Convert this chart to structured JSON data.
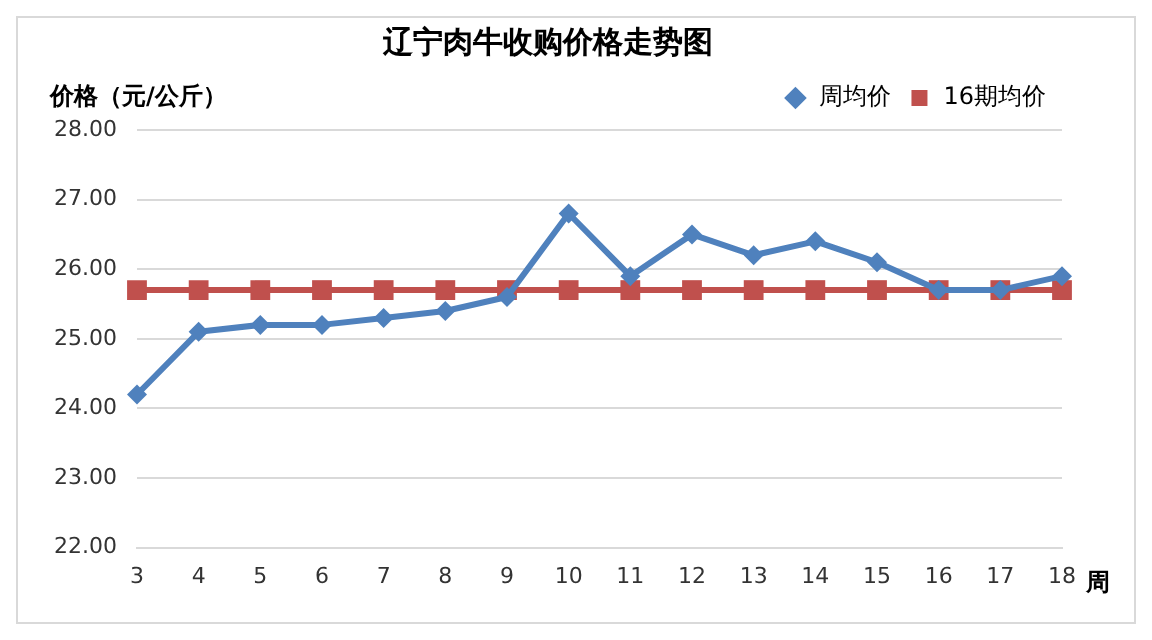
{
  "chart_data": {
    "type": "line",
    "title": "辽宁肉牛收购价格走势图",
    "xlabel": "周",
    "ylabel": "价格（元/公斤）",
    "categories": [
      "3",
      "4",
      "5",
      "6",
      "7",
      "8",
      "9",
      "10",
      "11",
      "12",
      "13",
      "14",
      "15",
      "16",
      "17",
      "18"
    ],
    "series": [
      {
        "name": "周均价",
        "color": "#4f81bd",
        "marker": "diamond",
        "values": [
          24.2,
          25.1,
          25.2,
          25.2,
          25.3,
          25.4,
          25.6,
          26.8,
          25.9,
          26.5,
          26.2,
          26.4,
          26.1,
          25.7,
          25.7,
          25.9
        ]
      },
      {
        "name": "16期均价",
        "color": "#c0504d",
        "marker": "square",
        "values": [
          25.7,
          25.7,
          25.7,
          25.7,
          25.7,
          25.7,
          25.7,
          25.7,
          25.7,
          25.7,
          25.7,
          25.7,
          25.7,
          25.7,
          25.7,
          25.7
        ]
      }
    ],
    "ylim": [
      22,
      28
    ],
    "yticks": [
      {
        "value": 22,
        "label": "22.00"
      },
      {
        "value": 23,
        "label": "23.00"
      },
      {
        "value": 24,
        "label": "24.00"
      },
      {
        "value": 25,
        "label": "25.00"
      },
      {
        "value": 26,
        "label": "26.00"
      },
      {
        "value": 27,
        "label": "27.00"
      },
      {
        "value": 28,
        "label": "28.00"
      }
    ],
    "grid": "y",
    "legend": "top right"
  }
}
